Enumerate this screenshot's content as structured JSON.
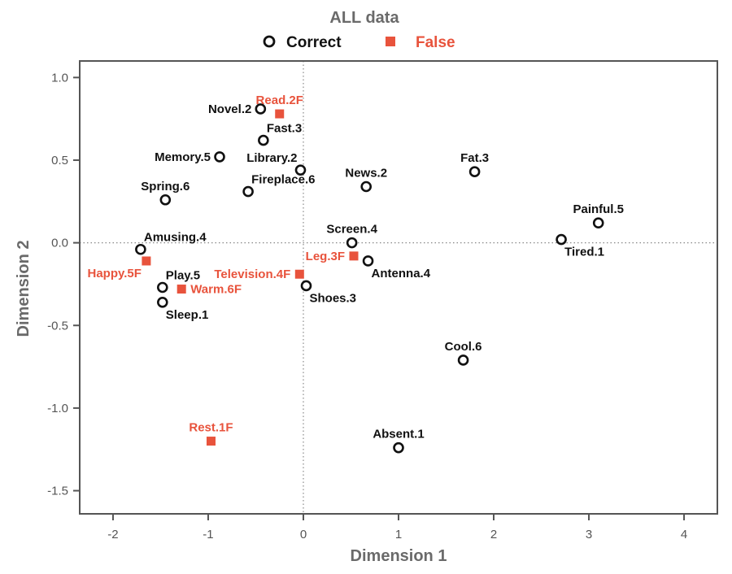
{
  "chart_data": {
    "type": "scatter",
    "title": "ALL data",
    "xlabel": "Dimension 1",
    "ylabel": "Dimension 2",
    "xlim": [
      -2.35,
      4.35
    ],
    "ylim": [
      -1.64,
      1.1
    ],
    "xticks": [
      -2,
      -1,
      0,
      1,
      2,
      3,
      4
    ],
    "yticks": [
      1.0,
      0.5,
      0.0,
      -0.5,
      -1.0,
      -1.5
    ],
    "xtick_labels": [
      "-2",
      "-1",
      "0",
      "1",
      "2",
      "3",
      "4"
    ],
    "ytick_labels": [
      "1.0",
      "0.5",
      "0.0",
      "-0.5",
      "-1.0",
      "-1.5"
    ],
    "reference_lines": {
      "x": 0,
      "y": 0,
      "style": "dotted"
    },
    "colors": {
      "correct": "#111111",
      "false": "#e8533c",
      "axis": "#555555"
    },
    "legend": {
      "placement": "top-center",
      "entries": [
        {
          "name": "Correct",
          "marker": "open-circle"
        },
        {
          "name": "False",
          "marker": "filled-square"
        }
      ]
    },
    "series": [
      {
        "name": "Correct",
        "points": [
          {
            "label": "Novel.2",
            "x": -0.45,
            "y": 0.81,
            "pos": "left"
          },
          {
            "label": "Fast.3",
            "x": -0.42,
            "y": 0.62,
            "pos": "above-right"
          },
          {
            "label": "Memory.5",
            "x": -0.88,
            "y": 0.52,
            "pos": "left"
          },
          {
            "label": "Library.2",
            "x": -0.03,
            "y": 0.44,
            "pos": "above-left"
          },
          {
            "label": "Fireplace.6",
            "x": -0.58,
            "y": 0.31,
            "pos": "above-right"
          },
          {
            "label": "Spring.6",
            "x": -1.45,
            "y": 0.26,
            "pos": "above"
          },
          {
            "label": "News.2",
            "x": 0.66,
            "y": 0.34,
            "pos": "above"
          },
          {
            "label": "Fat.3",
            "x": 1.8,
            "y": 0.43,
            "pos": "above"
          },
          {
            "label": "Painful.5",
            "x": 3.1,
            "y": 0.12,
            "pos": "above"
          },
          {
            "label": "Tired.1",
            "x": 2.71,
            "y": 0.02,
            "pos": "below-right"
          },
          {
            "label": "Screen.4",
            "x": 0.51,
            "y": -0.0,
            "pos": "above"
          },
          {
            "label": "Antenna.4",
            "x": 0.68,
            "y": -0.11,
            "pos": "below-right"
          },
          {
            "label": "Amusing.4",
            "x": -1.71,
            "y": -0.04,
            "pos": "above-right"
          },
          {
            "label": "Play.5",
            "x": -1.48,
            "y": -0.27,
            "pos": "above-right"
          },
          {
            "label": "Sleep.1",
            "x": -1.48,
            "y": -0.36,
            "pos": "below-right"
          },
          {
            "label": "Shoes.3",
            "x": 0.03,
            "y": -0.26,
            "pos": "below-right"
          },
          {
            "label": "Cool.6",
            "x": 1.68,
            "y": -0.71,
            "pos": "above"
          },
          {
            "label": "Absent.1",
            "x": 1.0,
            "y": -1.24,
            "pos": "above"
          }
        ]
      },
      {
        "name": "False",
        "points": [
          {
            "label": "Read.2F",
            "x": -0.25,
            "y": 0.78,
            "pos": "above"
          },
          {
            "label": "Happy.5F",
            "x": -1.65,
            "y": -0.11,
            "pos": "below-left"
          },
          {
            "label": "Warm.6F",
            "x": -1.28,
            "y": -0.28,
            "pos": "right"
          },
          {
            "label": "Television.4F",
            "x": -0.04,
            "y": -0.19,
            "pos": "left"
          },
          {
            "label": "Leg.3F",
            "x": 0.53,
            "y": -0.08,
            "pos": "left"
          },
          {
            "label": "Rest.1F",
            "x": -0.97,
            "y": -1.2,
            "pos": "above"
          }
        ]
      }
    ]
  }
}
